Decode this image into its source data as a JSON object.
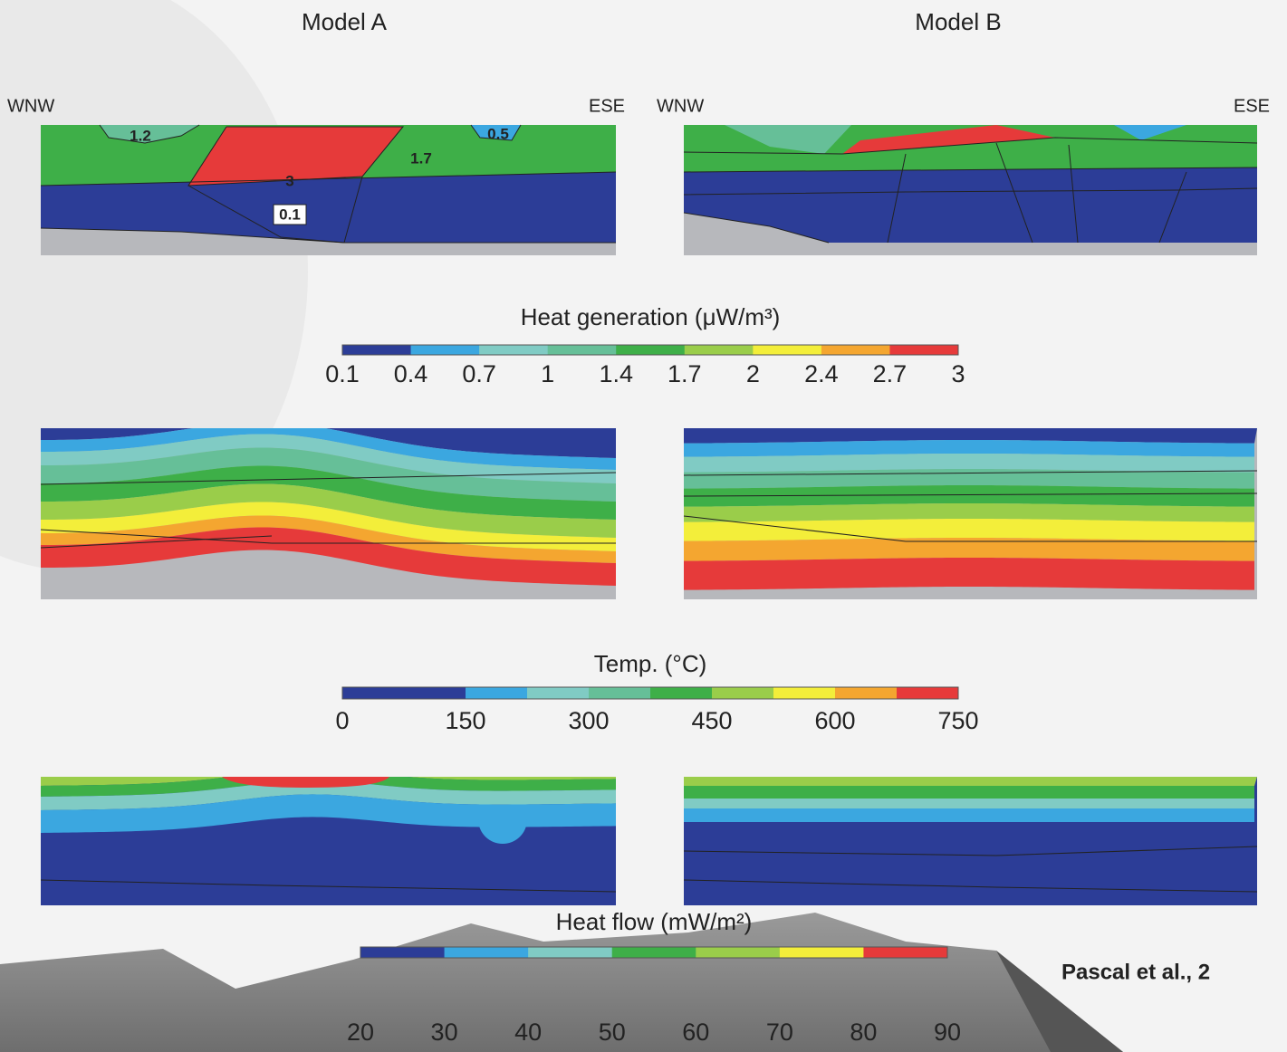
{
  "header": {
    "model_a": "Model A",
    "model_b": "Model B"
  },
  "orientation": {
    "a_left": "WNW",
    "a_right": "ESE",
    "b_left": "WNW",
    "b_right": "ESE"
  },
  "region_labels": [
    "1.2",
    "3",
    "1.7",
    "0.5",
    "0.1"
  ],
  "colorbars": [
    {
      "title": "Heat generation (μW/m³)",
      "colors": [
        "#2c3d97",
        "#3ba7e0",
        "#80cbc4",
        "#66bf98",
        "#3eaf48",
        "#9acd4a",
        "#f3ee3a",
        "#f4a630",
        "#e63a3a"
      ],
      "ticks": [
        "0.1",
        "0.4",
        "0.7",
        "1",
        "1.4",
        "1.7",
        "2",
        "2.4",
        "2.7",
        "3"
      ]
    },
    {
      "title": "Temp. (°C)",
      "colors": [
        "#2c3d97",
        "#2c3d97",
        "#3ba7e0",
        "#80cbc4",
        "#66bf98",
        "#3eaf48",
        "#9acd4a",
        "#f3ee3a",
        "#f4a630",
        "#e63a3a"
      ],
      "ticks": [
        "0",
        "150",
        "300",
        "450",
        "600",
        "750"
      ]
    },
    {
      "title": "Heat flow (mW/m²)",
      "colors": [
        "#2c3d97",
        "#3ba7e0",
        "#80cbc4",
        "#3eaf48",
        "#9acd4a",
        "#f3ee3a",
        "#e63a3a"
      ],
      "ticks": [
        "20",
        "30",
        "40",
        "50",
        "60",
        "70",
        "80",
        "90"
      ]
    }
  ],
  "citation": "Pascal et al., 2"
}
